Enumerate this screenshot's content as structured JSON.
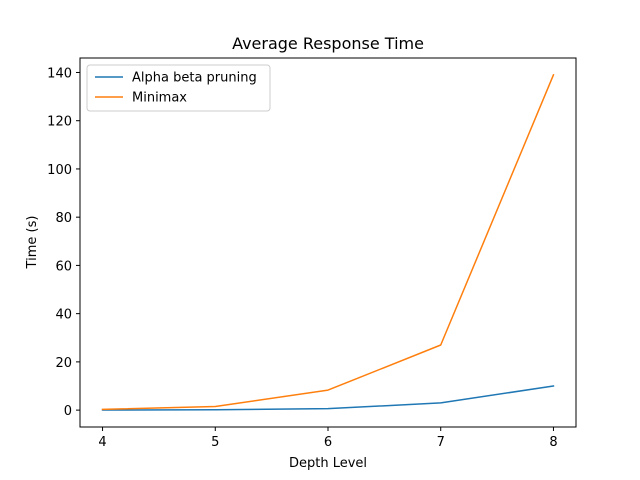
{
  "chart_data": {
    "type": "line",
    "title": "Average Response Time",
    "xlabel": "Depth Level",
    "ylabel": "Time (s)",
    "x": [
      4,
      5,
      6,
      7,
      8
    ],
    "xlim": [
      3.8,
      8.2
    ],
    "ylim": [
      -7,
      146
    ],
    "xticks": [
      4,
      5,
      6,
      7,
      8
    ],
    "yticks": [
      0,
      20,
      40,
      60,
      80,
      100,
      120,
      140
    ],
    "grid": false,
    "legend_position": "top-left",
    "series": [
      {
        "name": "Alpha beta pruning",
        "color": "#1f77b4",
        "values": [
          0.05,
          0.15,
          0.6,
          3.0,
          10.0
        ]
      },
      {
        "name": "Minimax",
        "color": "#ff7f0e",
        "values": [
          0.3,
          1.5,
          8.3,
          27.0,
          139.0
        ]
      }
    ]
  }
}
